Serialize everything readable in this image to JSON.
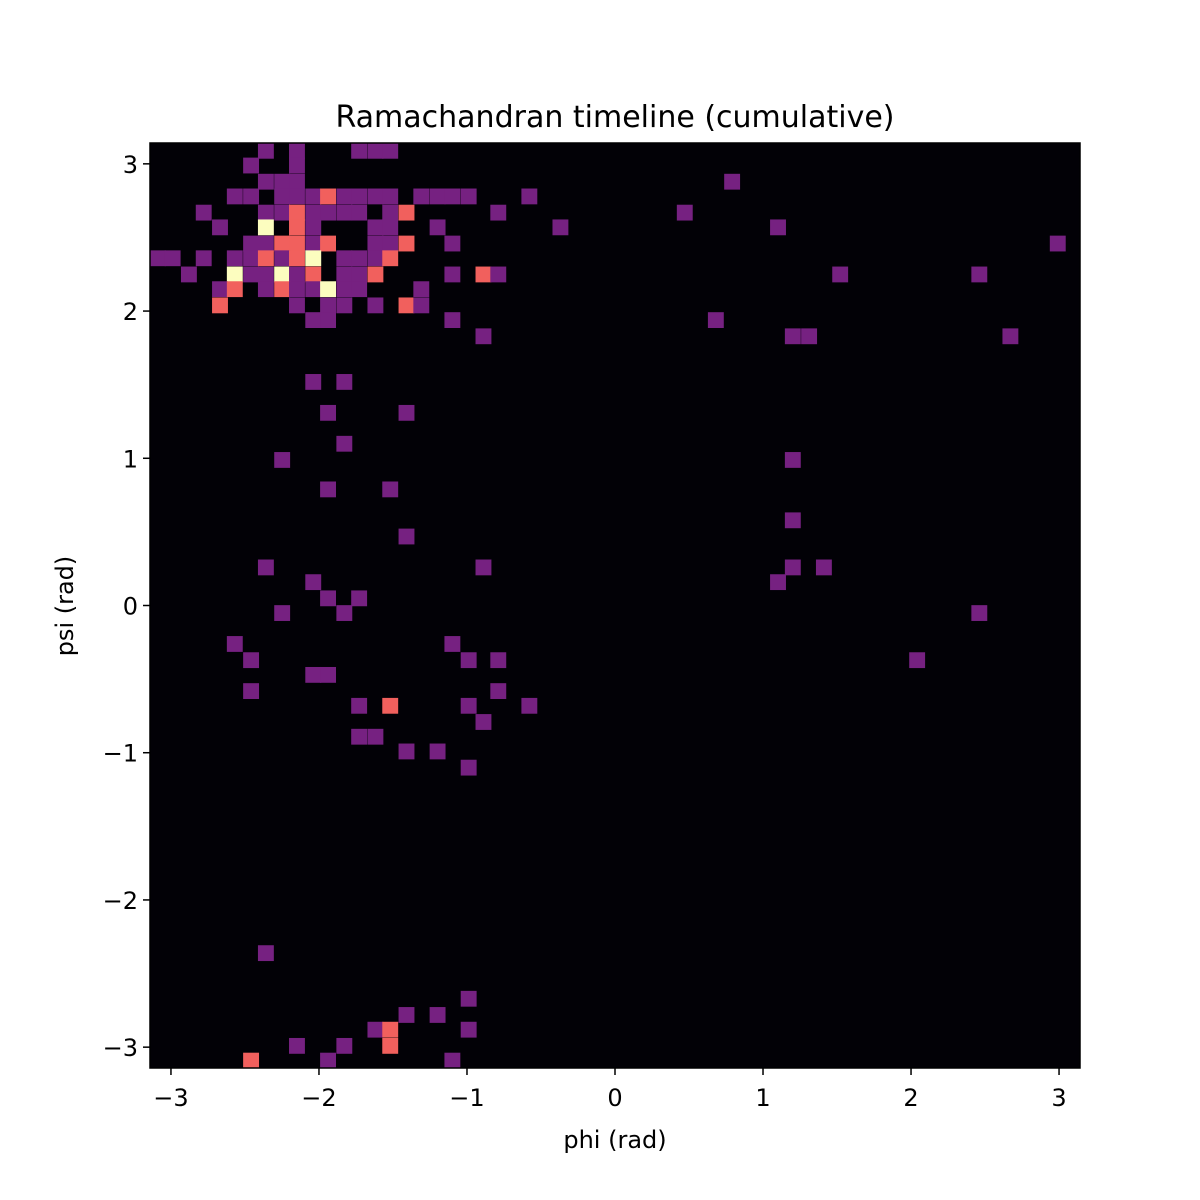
{
  "chart_data": {
    "type": "heatmap",
    "title": "Ramachandran timeline (cumulative)",
    "xlabel": "phi (rad)",
    "ylabel": "psi (rad)",
    "xlim": [
      -3.14159,
      3.14159
    ],
    "ylim": [
      -3.14159,
      3.14159
    ],
    "bins": 60,
    "bin_width_rad": 0.10472,
    "xticks": [
      {
        "value": -3,
        "label": "−3"
      },
      {
        "value": -2,
        "label": "−2"
      },
      {
        "value": -1,
        "label": "−1"
      },
      {
        "value": 0,
        "label": "0"
      },
      {
        "value": 1,
        "label": "1"
      },
      {
        "value": 2,
        "label": "2"
      },
      {
        "value": 3,
        "label": "3"
      }
    ],
    "yticks": [
      {
        "value": -3,
        "label": "−3"
      },
      {
        "value": -2,
        "label": "−2"
      },
      {
        "value": -1,
        "label": "−1"
      },
      {
        "value": 0,
        "label": "0"
      },
      {
        "value": 1,
        "label": "1"
      },
      {
        "value": 2,
        "label": "2"
      },
      {
        "value": 3,
        "label": "3"
      }
    ],
    "colormap": "magma",
    "count_colors": {
      "0": "#020106",
      "1": "#762181",
      "2": "#f1605d",
      "3": "#fcfdbf"
    },
    "grid": false,
    "legend": "none",
    "nonzero_bins_phi_psi_count": [
      [
        -2.36,
        3.09,
        1
      ],
      [
        -2.15,
        3.09,
        1
      ],
      [
        -1.73,
        3.09,
        1
      ],
      [
        -1.62,
        3.09,
        1
      ],
      [
        -1.52,
        3.09,
        1
      ],
      [
        -2.46,
        2.99,
        1
      ],
      [
        -2.15,
        2.99,
        1
      ],
      [
        -2.36,
        2.88,
        1
      ],
      [
        -2.25,
        2.88,
        1
      ],
      [
        -2.15,
        2.88,
        1
      ],
      [
        0.79,
        2.88,
        1
      ],
      [
        -2.57,
        2.78,
        1
      ],
      [
        -2.46,
        2.78,
        1
      ],
      [
        -2.25,
        2.78,
        1
      ],
      [
        -2.15,
        2.78,
        1
      ],
      [
        -2.04,
        2.78,
        1
      ],
      [
        -1.94,
        2.78,
        2
      ],
      [
        -1.83,
        2.78,
        1
      ],
      [
        -1.73,
        2.78,
        1
      ],
      [
        -1.62,
        2.78,
        1
      ],
      [
        -1.52,
        2.78,
        1
      ],
      [
        -1.31,
        2.78,
        1
      ],
      [
        -1.2,
        2.78,
        1
      ],
      [
        -1.1,
        2.78,
        1
      ],
      [
        -0.99,
        2.78,
        1
      ],
      [
        -0.58,
        2.78,
        1
      ],
      [
        -2.78,
        2.67,
        1
      ],
      [
        -2.36,
        2.67,
        1
      ],
      [
        -2.25,
        2.67,
        1
      ],
      [
        -2.15,
        2.67,
        2
      ],
      [
        -2.04,
        2.67,
        1
      ],
      [
        -1.94,
        2.67,
        1
      ],
      [
        -1.83,
        2.67,
        1
      ],
      [
        -1.73,
        2.67,
        1
      ],
      [
        -1.52,
        2.67,
        1
      ],
      [
        -1.41,
        2.67,
        2
      ],
      [
        -0.79,
        2.67,
        1
      ],
      [
        0.47,
        2.67,
        1
      ],
      [
        -2.67,
        2.57,
        1
      ],
      [
        -2.36,
        2.57,
        3
      ],
      [
        -2.15,
        2.57,
        2
      ],
      [
        -2.04,
        2.57,
        1
      ],
      [
        -1.62,
        2.57,
        1
      ],
      [
        -1.52,
        2.57,
        1
      ],
      [
        -1.2,
        2.57,
        1
      ],
      [
        -0.37,
        2.57,
        1
      ],
      [
        1.1,
        2.57,
        1
      ],
      [
        -2.46,
        2.46,
        1
      ],
      [
        -2.36,
        2.46,
        1
      ],
      [
        -2.25,
        2.46,
        2
      ],
      [
        -2.15,
        2.46,
        2
      ],
      [
        -2.04,
        2.46,
        1
      ],
      [
        -1.94,
        2.46,
        2
      ],
      [
        -1.62,
        2.46,
        1
      ],
      [
        -1.52,
        2.46,
        1
      ],
      [
        -1.41,
        2.46,
        2
      ],
      [
        -1.1,
        2.46,
        1
      ],
      [
        2.99,
        2.46,
        1
      ],
      [
        -3.09,
        2.36,
        1
      ],
      [
        -2.99,
        2.36,
        1
      ],
      [
        -2.78,
        2.36,
        1
      ],
      [
        -2.57,
        2.36,
        1
      ],
      [
        -2.46,
        2.36,
        1
      ],
      [
        -2.36,
        2.36,
        2
      ],
      [
        -2.25,
        2.36,
        1
      ],
      [
        -2.15,
        2.36,
        2
      ],
      [
        -2.04,
        2.36,
        3
      ],
      [
        -1.83,
        2.36,
        1
      ],
      [
        -1.73,
        2.36,
        1
      ],
      [
        -1.62,
        2.36,
        1
      ],
      [
        -1.52,
        2.36,
        2
      ],
      [
        -2.88,
        2.25,
        1
      ],
      [
        -2.57,
        2.25,
        3
      ],
      [
        -2.46,
        2.25,
        1
      ],
      [
        -2.36,
        2.25,
        1
      ],
      [
        -2.25,
        2.25,
        3
      ],
      [
        -2.15,
        2.25,
        1
      ],
      [
        -2.04,
        2.25,
        2
      ],
      [
        -1.83,
        2.25,
        1
      ],
      [
        -1.73,
        2.25,
        1
      ],
      [
        -1.62,
        2.25,
        2
      ],
      [
        -1.1,
        2.25,
        1
      ],
      [
        -0.89,
        2.25,
        2
      ],
      [
        -0.79,
        2.25,
        1
      ],
      [
        1.52,
        2.25,
        1
      ],
      [
        2.46,
        2.25,
        1
      ],
      [
        -2.67,
        2.15,
        1
      ],
      [
        -2.57,
        2.15,
        2
      ],
      [
        -2.36,
        2.15,
        1
      ],
      [
        -2.25,
        2.15,
        2
      ],
      [
        -2.15,
        2.15,
        1
      ],
      [
        -2.04,
        2.15,
        1
      ],
      [
        -1.94,
        2.15,
        3
      ],
      [
        -1.83,
        2.15,
        1
      ],
      [
        -1.73,
        2.15,
        1
      ],
      [
        -1.31,
        2.15,
        1
      ],
      [
        -2.67,
        2.04,
        2
      ],
      [
        -2.15,
        2.04,
        1
      ],
      [
        -1.94,
        2.04,
        1
      ],
      [
        -1.83,
        2.04,
        1
      ],
      [
        -1.62,
        2.04,
        1
      ],
      [
        -1.41,
        2.04,
        2
      ],
      [
        -1.31,
        2.04,
        1
      ],
      [
        -2.04,
        1.94,
        1
      ],
      [
        -1.94,
        1.94,
        1
      ],
      [
        -1.1,
        1.94,
        1
      ],
      [
        0.68,
        1.94,
        1
      ],
      [
        -0.89,
        1.83,
        1
      ],
      [
        1.2,
        1.83,
        1
      ],
      [
        1.31,
        1.83,
        1
      ],
      [
        2.67,
        1.83,
        1
      ],
      [
        -2.04,
        1.52,
        1
      ],
      [
        -1.83,
        1.52,
        1
      ],
      [
        -1.94,
        1.31,
        1
      ],
      [
        -1.41,
        1.31,
        1
      ],
      [
        -1.83,
        1.1,
        1
      ],
      [
        -2.25,
        0.99,
        1
      ],
      [
        1.2,
        0.99,
        1
      ],
      [
        -1.94,
        0.79,
        1
      ],
      [
        -1.52,
        0.79,
        1
      ],
      [
        1.2,
        0.58,
        1
      ],
      [
        -1.41,
        0.47,
        1
      ],
      [
        -2.36,
        0.26,
        1
      ],
      [
        -0.89,
        0.26,
        1
      ],
      [
        1.2,
        0.26,
        1
      ],
      [
        1.41,
        0.26,
        1
      ],
      [
        -2.04,
        0.16,
        1
      ],
      [
        1.1,
        0.16,
        1
      ],
      [
        -1.94,
        0.05,
        1
      ],
      [
        -1.73,
        0.05,
        1
      ],
      [
        -2.25,
        -0.05,
        1
      ],
      [
        -1.83,
        -0.05,
        1
      ],
      [
        2.46,
        -0.05,
        1
      ],
      [
        -2.57,
        -0.26,
        1
      ],
      [
        -1.1,
        -0.26,
        1
      ],
      [
        -2.46,
        -0.37,
        1
      ],
      [
        -0.99,
        -0.37,
        1
      ],
      [
        -0.79,
        -0.37,
        1
      ],
      [
        2.04,
        -0.37,
        1
      ],
      [
        -2.04,
        -0.47,
        1
      ],
      [
        -1.94,
        -0.47,
        1
      ],
      [
        -2.46,
        -0.58,
        1
      ],
      [
        -0.79,
        -0.58,
        1
      ],
      [
        -1.73,
        -0.68,
        1
      ],
      [
        -1.52,
        -0.68,
        2
      ],
      [
        -0.99,
        -0.68,
        1
      ],
      [
        -0.58,
        -0.68,
        1
      ],
      [
        -0.89,
        -0.79,
        1
      ],
      [
        -1.73,
        -0.89,
        1
      ],
      [
        -1.62,
        -0.89,
        1
      ],
      [
        -1.41,
        -0.99,
        1
      ],
      [
        -1.2,
        -0.99,
        1
      ],
      [
        -0.99,
        -1.1,
        1
      ],
      [
        -2.36,
        -2.36,
        1
      ],
      [
        -0.99,
        -2.67,
        1
      ],
      [
        -1.41,
        -2.78,
        1
      ],
      [
        -1.2,
        -2.78,
        1
      ],
      [
        -1.62,
        -2.88,
        1
      ],
      [
        -1.52,
        -2.88,
        2
      ],
      [
        -0.99,
        -2.88,
        1
      ],
      [
        -2.15,
        -2.99,
        1
      ],
      [
        -1.83,
        -2.99,
        1
      ],
      [
        -1.52,
        -2.99,
        2
      ],
      [
        -2.46,
        -3.09,
        2
      ],
      [
        -1.94,
        -3.09,
        1
      ],
      [
        -1.1,
        -3.09,
        1
      ]
    ]
  }
}
